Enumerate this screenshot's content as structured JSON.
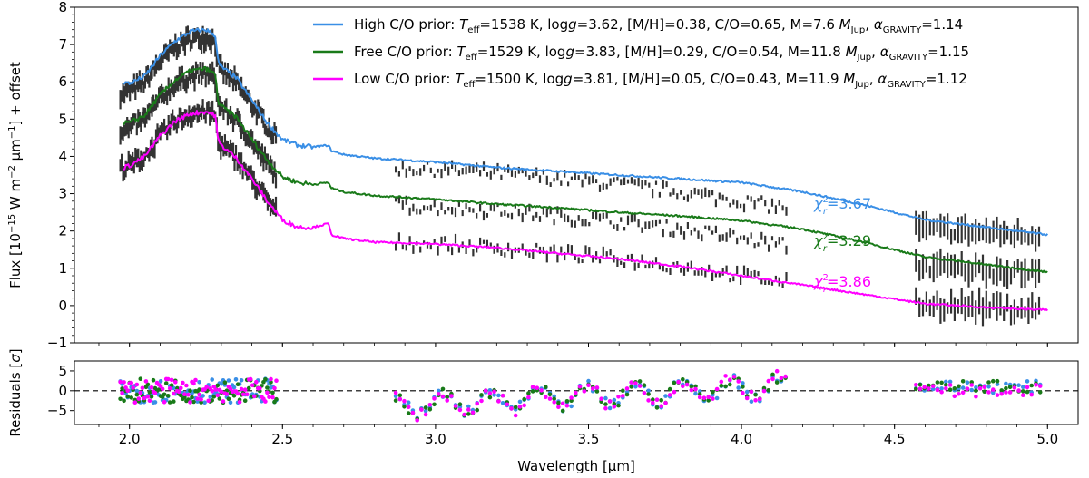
{
  "chart_data": [
    {
      "type": "line",
      "panel": "spectrum",
      "xlabel": "",
      "ylabel": "Flux [10^-15 W m^-2 µm^-1] + offset",
      "ylabel_parts": {
        "pre": "Flux [10",
        "exp1": "−15",
        "mid": " W m",
        "exp2": "−2",
        "mid2": " µm",
        "exp3": "−1",
        "post": "] + offset"
      },
      "xlim": [
        1.82,
        5.1
      ],
      "ylim": [
        -1,
        8
      ],
      "yticks": [
        "−1",
        "0",
        "1",
        "2",
        "3",
        "4",
        "5",
        "6",
        "7",
        "8"
      ],
      "xticks": [
        "2.0",
        "2.5",
        "3.0",
        "3.5",
        "4.0",
        "4.5",
        "5.0"
      ],
      "legend_position": "top-right",
      "series": [
        {
          "name": "High C/O prior",
          "color": "#3a8fe6",
          "params": {
            "teff": "1538 K",
            "logg": "3.62",
            "mh": "0.38",
            "co": "0.65",
            "mass": "7.6",
            "alpha": "1.14"
          },
          "chi2": "3.67",
          "offset": 2,
          "x": [
            1.98,
            2.0,
            2.05,
            2.1,
            2.15,
            2.2,
            2.25,
            2.28,
            2.29,
            2.3,
            2.35,
            2.4,
            2.45,
            2.5,
            2.55,
            2.6,
            2.65,
            2.66,
            2.7,
            2.8,
            2.9,
            3.0,
            3.2,
            3.4,
            3.6,
            3.8,
            4.0,
            4.2,
            4.4,
            4.6,
            4.8,
            5.0
          ],
          "y": [
            4.0,
            3.95,
            4.15,
            4.7,
            5.1,
            5.35,
            5.4,
            5.25,
            4.5,
            4.4,
            4.1,
            3.5,
            2.9,
            2.45,
            2.3,
            2.25,
            2.3,
            2.15,
            2.05,
            1.95,
            1.9,
            1.85,
            1.7,
            1.6,
            1.5,
            1.4,
            1.3,
            1.05,
            0.7,
            0.3,
            0.1,
            -0.1
          ]
        },
        {
          "name": "Free C/O prior",
          "color": "#197a19",
          "params": {
            "teff": "1529 K",
            "logg": "3.83",
            "mh": "0.29",
            "co": "0.54",
            "mass": "11.8",
            "alpha": "1.15"
          },
          "chi2": "3.29",
          "offset": 1,
          "x": [
            1.98,
            2.0,
            2.05,
            2.1,
            2.15,
            2.2,
            2.25,
            2.28,
            2.29,
            2.3,
            2.35,
            2.4,
            2.45,
            2.5,
            2.55,
            2.6,
            2.65,
            2.66,
            2.7,
            2.8,
            2.9,
            3.0,
            3.2,
            3.4,
            3.6,
            3.8,
            4.0,
            4.2,
            4.4,
            4.6,
            4.8,
            5.0
          ],
          "y": [
            3.9,
            3.9,
            4.1,
            4.65,
            5.05,
            5.3,
            5.35,
            5.2,
            4.45,
            4.35,
            4.05,
            3.45,
            2.9,
            2.45,
            2.3,
            2.25,
            2.3,
            2.15,
            2.05,
            1.95,
            1.9,
            1.85,
            1.72,
            1.62,
            1.5,
            1.4,
            1.28,
            1.05,
            0.7,
            0.3,
            0.1,
            -0.1
          ]
        },
        {
          "name": "Low C/O prior",
          "color": "#ff00ff",
          "params": {
            "teff": "1500 K",
            "logg": "3.81",
            "mh": "0.05",
            "co": "0.43",
            "mass": "11.9",
            "alpha": "1.12"
          },
          "chi2": "3.86",
          "offset": 0,
          "x": [
            1.98,
            2.0,
            2.05,
            2.1,
            2.15,
            2.2,
            2.25,
            2.28,
            2.29,
            2.3,
            2.35,
            2.4,
            2.45,
            2.5,
            2.55,
            2.6,
            2.65,
            2.66,
            2.7,
            2.8,
            2.9,
            3.0,
            3.2,
            3.4,
            3.6,
            3.8,
            4.0,
            4.2,
            4.4,
            4.6,
            4.8,
            5.0
          ],
          "y": [
            3.7,
            3.75,
            4.0,
            4.55,
            4.95,
            5.15,
            5.2,
            5.1,
            4.4,
            4.3,
            3.95,
            3.4,
            2.8,
            2.3,
            2.1,
            2.1,
            2.2,
            1.9,
            1.8,
            1.7,
            1.68,
            1.65,
            1.55,
            1.4,
            1.25,
            1.05,
            0.8,
            0.55,
            0.3,
            0.05,
            -0.05,
            -0.12
          ]
        }
      ],
      "observed": {
        "color": "#333333",
        "segments": [
          [
            1.97,
            2.48
          ],
          [
            2.87,
            4.15
          ],
          [
            4.57,
            4.98
          ]
        ]
      }
    },
    {
      "type": "scatter",
      "panel": "residuals",
      "xlabel": "Wavelength [µm]",
      "ylabel_parts": {
        "pre": "Residuals [",
        "sym": "σ",
        "post": "]"
      },
      "xlim": [
        1.82,
        5.1
      ],
      "ylim": [
        -8.5,
        7.5
      ],
      "yticks": [
        "−5",
        "0",
        "5"
      ],
      "ytick_values": [
        -5,
        0,
        5
      ],
      "xticks": [
        "2.0",
        "2.5",
        "3.0",
        "3.5",
        "4.0",
        "4.5",
        "5.0"
      ],
      "xtick_values": [
        2.0,
        2.5,
        3.0,
        3.5,
        4.0,
        4.5,
        5.0
      ],
      "zero_line": true,
      "series": [
        {
          "name": "High C/O prior",
          "color": "#3a8fe6"
        },
        {
          "name": "Free C/O prior",
          "color": "#197a19"
        },
        {
          "name": "Low C/O prior",
          "color": "#ff00ff"
        }
      ]
    }
  ]
}
